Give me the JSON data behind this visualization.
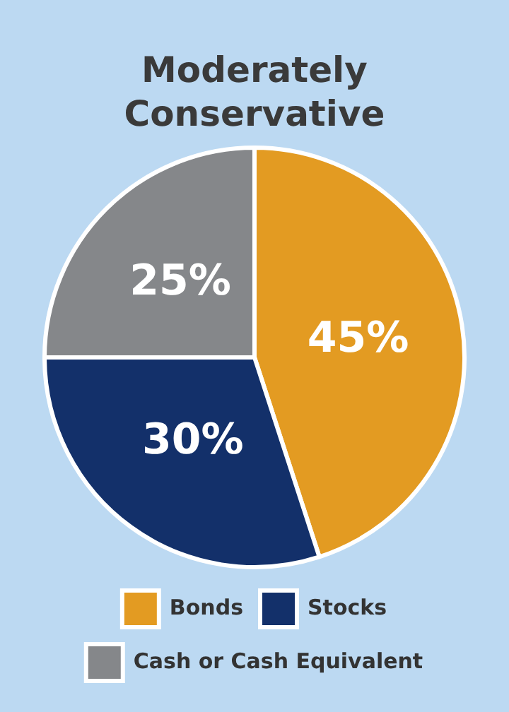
{
  "chart_data": {
    "type": "pie",
    "title": "Moderately Conservative",
    "categories": [
      "Bonds",
      "Stocks",
      "Cash or Cash Equivalent"
    ],
    "values": [
      45,
      30,
      25
    ],
    "colors": [
      "#e39b22",
      "#13306a",
      "#85878a"
    ],
    "value_labels": [
      "45%",
      "30%",
      "25%"
    ],
    "legend": "bottom"
  }
}
